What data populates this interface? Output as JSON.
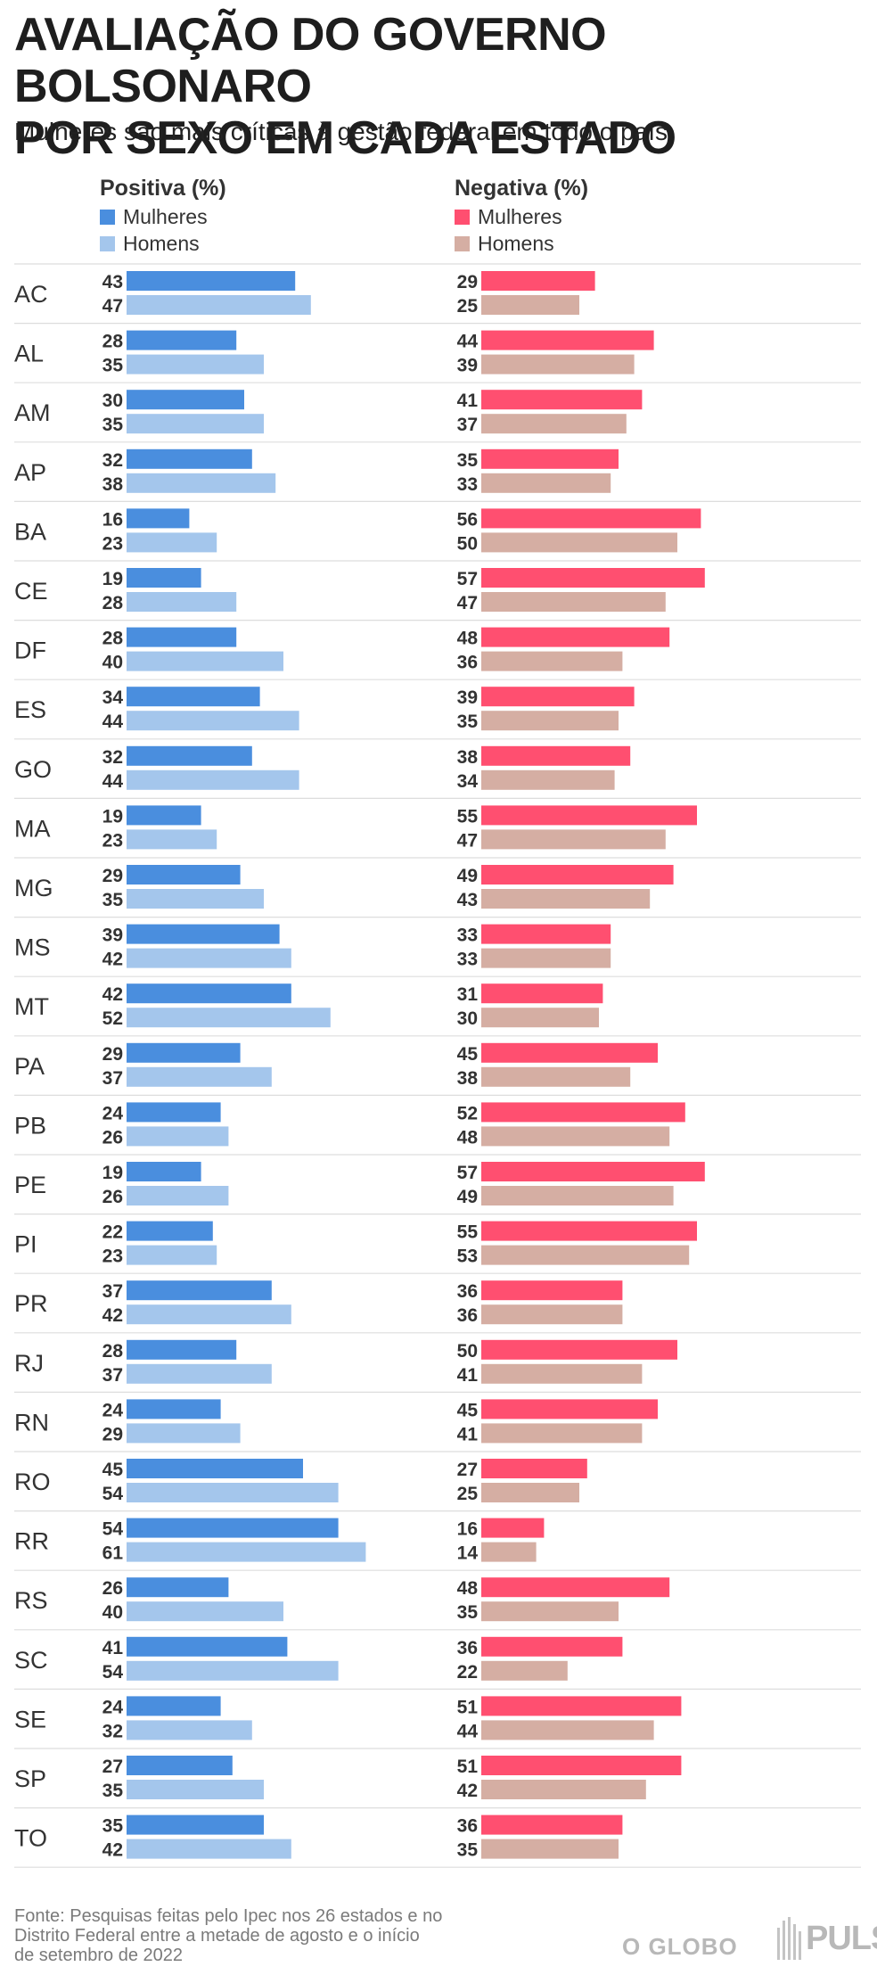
{
  "header": {
    "title_line1": "AVALIAÇÃO DO GOVERNO BOLSONARO",
    "title_line2": "POR SEXO EM CADA ESTADO",
    "subtitle": "Mulheres são mais críticas à gestão federal em todo o país"
  },
  "legend": {
    "positive_title": "Positiva (%)",
    "negative_title": "Negativa (%)",
    "women": "Mulheres",
    "men": "Homens"
  },
  "colors": {
    "pos_women": "#4a8ede",
    "pos_men": "#a4c6ec",
    "neg_women": "#ff4f70",
    "neg_men": "#d5aea3",
    "grid": "#dddddd"
  },
  "chart_data": {
    "type": "bar",
    "orientation": "horizontal",
    "title": "AVALIAÇÃO DO GOVERNO BOLSONARO POR SEXO EM CADA ESTADO",
    "categories": [
      "AC",
      "AL",
      "AM",
      "AP",
      "BA",
      "CE",
      "DF",
      "ES",
      "GO",
      "MA",
      "MG",
      "MS",
      "MT",
      "PA",
      "PB",
      "PE",
      "PI",
      "PR",
      "RJ",
      "RN",
      "RO",
      "RR",
      "RS",
      "SC",
      "SE",
      "SP",
      "TO"
    ],
    "series": [
      {
        "name": "Positiva - Mulheres",
        "group": "Positiva (%)",
        "values": [
          43,
          28,
          30,
          32,
          16,
          19,
          28,
          34,
          32,
          19,
          29,
          39,
          42,
          29,
          24,
          19,
          22,
          37,
          28,
          24,
          45,
          54,
          26,
          41,
          24,
          27,
          35
        ]
      },
      {
        "name": "Positiva - Homens",
        "group": "Positiva (%)",
        "values": [
          47,
          35,
          35,
          38,
          23,
          28,
          40,
          44,
          44,
          23,
          35,
          42,
          52,
          37,
          26,
          26,
          23,
          42,
          37,
          29,
          54,
          61,
          40,
          54,
          32,
          35,
          42
        ]
      },
      {
        "name": "Negativa - Mulheres",
        "group": "Negativa (%)",
        "values": [
          29,
          44,
          41,
          35,
          56,
          57,
          48,
          39,
          38,
          55,
          49,
          33,
          31,
          45,
          52,
          57,
          55,
          36,
          50,
          45,
          27,
          16,
          48,
          36,
          51,
          51,
          36
        ]
      },
      {
        "name": "Negativa - Homens",
        "group": "Negativa (%)",
        "values": [
          25,
          39,
          37,
          33,
          50,
          47,
          36,
          35,
          34,
          47,
          43,
          33,
          30,
          38,
          48,
          49,
          53,
          36,
          41,
          41,
          25,
          14,
          35,
          22,
          44,
          42,
          35
        ]
      }
    ],
    "xlim": [
      0,
      61
    ]
  },
  "footer": {
    "source_line1": "Fonte: Pesquisas feitas pelo Ipec nos 26 estados e no",
    "source_line2": "Distrito Federal entre a metade de agosto e o início",
    "source_line3": "de setembro de 2022",
    "logo_globo": "O GLOBO",
    "logo_pulso": "PULSO"
  }
}
